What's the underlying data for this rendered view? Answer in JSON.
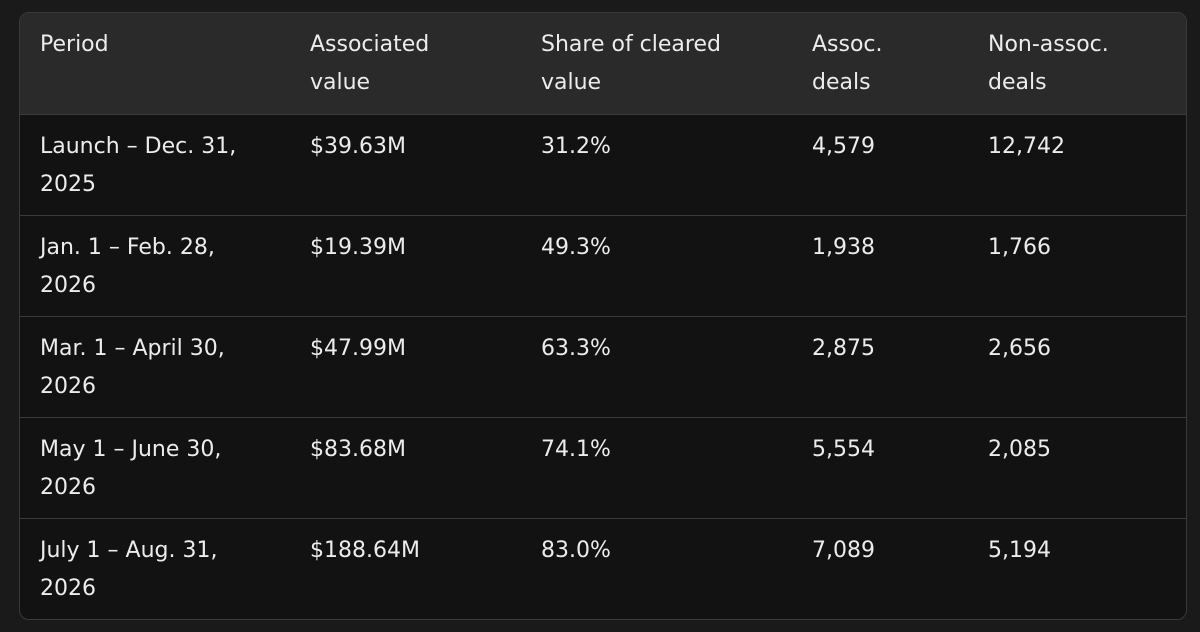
{
  "table": {
    "headers": [
      "Period",
      "Associated value",
      "Share of cleared value",
      "Assoc. deals",
      "Non-assoc. deals"
    ],
    "header_lines": [
      [
        "Period",
        ""
      ],
      [
        "Associated",
        "value"
      ],
      [
        "Share of cleared",
        "value"
      ],
      [
        "Assoc.",
        "deals"
      ],
      [
        "Non-assoc.",
        "deals"
      ]
    ],
    "rows": [
      {
        "period_lines": [
          "Launch – Dec. 31,",
          "2025"
        ],
        "associated_value": "$39.63M",
        "share": "31.2%",
        "assoc_deals": "4,579",
        "non_assoc_deals": "12,742"
      },
      {
        "period_lines": [
          "Jan. 1 – Feb. 28,",
          "2026"
        ],
        "associated_value": "$19.39M",
        "share": "49.3%",
        "assoc_deals": "1,938",
        "non_assoc_deals": "1,766"
      },
      {
        "period_lines": [
          "Mar. 1 – April 30,",
          "2026"
        ],
        "associated_value": "$47.99M",
        "share": "63.3%",
        "assoc_deals": "2,875",
        "non_assoc_deals": "2,656"
      },
      {
        "period_lines": [
          "May 1 – June 30,",
          "2026"
        ],
        "associated_value": "$83.68M",
        "share": "74.1%",
        "assoc_deals": "5,554",
        "non_assoc_deals": "2,085"
      },
      {
        "period_lines": [
          "July 1 – Aug. 31,",
          "2026"
        ],
        "associated_value": "$188.64M",
        "share": "83.0%",
        "assoc_deals": "7,089",
        "non_assoc_deals": "5,194"
      }
    ]
  }
}
